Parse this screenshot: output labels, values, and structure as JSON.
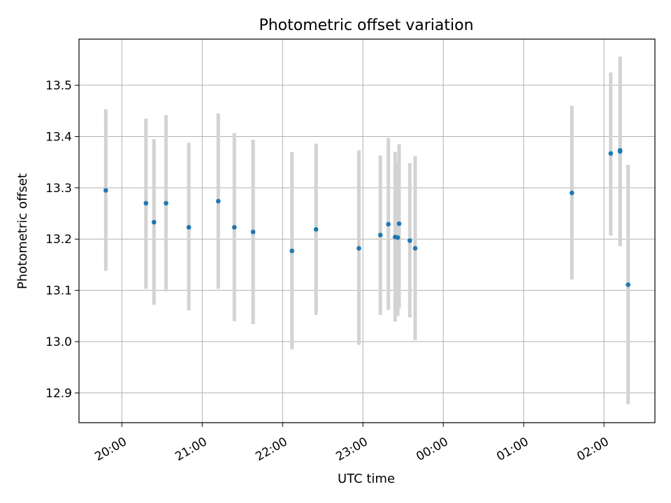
{
  "chart_data": {
    "type": "scatter",
    "title": "Photometric offset variation",
    "xlabel": "UTC time",
    "ylabel": "Photometric offset",
    "grid": true,
    "xlim": [
      "19:28",
      "02:38"
    ],
    "ylim": [
      12.842,
      13.59
    ],
    "x_ticks": [
      "20:00",
      "21:00",
      "22:00",
      "23:00",
      "00:00",
      "01:00",
      "02:00"
    ],
    "y_ticks": [
      "12.9",
      "13.0",
      "13.1",
      "13.2",
      "13.3",
      "13.4",
      "13.5"
    ],
    "colors": {
      "point": "#1f77b4",
      "errorbar": "#d3d3d3",
      "grid": "#b0b0b0"
    },
    "points": [
      {
        "t": "19:48",
        "y": 13.295,
        "lo": 13.138,
        "hi": 13.453
      },
      {
        "t": "20:18",
        "y": 13.27,
        "lo": 13.103,
        "hi": 13.435
      },
      {
        "t": "20:24",
        "y": 13.233,
        "lo": 13.072,
        "hi": 13.395
      },
      {
        "t": "20:33",
        "y": 13.27,
        "lo": 13.098,
        "hi": 13.442
      },
      {
        "t": "20:50",
        "y": 13.223,
        "lo": 13.061,
        "hi": 13.388
      },
      {
        "t": "21:12",
        "y": 13.274,
        "lo": 13.103,
        "hi": 13.445
      },
      {
        "t": "21:24",
        "y": 13.223,
        "lo": 13.04,
        "hi": 13.407
      },
      {
        "t": "21:38",
        "y": 13.214,
        "lo": 13.034,
        "hi": 13.394
      },
      {
        "t": "22:07",
        "y": 13.177,
        "lo": 12.985,
        "hi": 13.37
      },
      {
        "t": "22:25",
        "y": 13.219,
        "lo": 13.052,
        "hi": 13.386
      },
      {
        "t": "22:57",
        "y": 13.182,
        "lo": 12.994,
        "hi": 13.373
      },
      {
        "t": "23:13",
        "y": 13.208,
        "lo": 13.052,
        "hi": 13.363
      },
      {
        "t": "23:19",
        "y": 13.229,
        "lo": 13.062,
        "hi": 13.397
      },
      {
        "t": "23:24",
        "y": 13.204,
        "lo": 13.039,
        "hi": 13.37
      },
      {
        "t": "23:26",
        "y": 13.203,
        "lo": 13.05,
        "hi": 13.35
      },
      {
        "t": "23:27",
        "y": 13.23,
        "lo": 13.065,
        "hi": 13.385
      },
      {
        "t": "23:35",
        "y": 13.197,
        "lo": 13.047,
        "hi": 13.348
      },
      {
        "t": "23:39",
        "y": 13.182,
        "lo": 13.003,
        "hi": 13.362
      },
      {
        "t": "01:36",
        "y": 13.29,
        "lo": 13.121,
        "hi": 13.46
      },
      {
        "t": "02:05",
        "y": 13.367,
        "lo": 13.207,
        "hi": 13.525
      },
      {
        "t": "02:12",
        "y": 13.373,
        "lo": 13.186,
        "hi": 13.556
      },
      {
        "t": "02:12",
        "y": 13.371,
        "lo": 13.186,
        "hi": 13.556
      },
      {
        "t": "02:18",
        "y": 13.111,
        "lo": 12.878,
        "hi": 13.345
      }
    ]
  }
}
